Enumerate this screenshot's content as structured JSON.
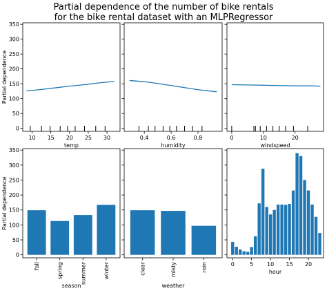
{
  "figure": {
    "title_line1": "Partial dependence of the number of bike rentals",
    "title_line2": "for the bike rental dataset with an MLPRegressor",
    "colors": {
      "series": "#1f77b4",
      "axes": "#000000"
    }
  },
  "chart_data": [
    {
      "type": "line",
      "xlabel": "temp",
      "ylabel": "Partial dependence",
      "xlim": [
        7.5,
        33.5
      ],
      "ylim": [
        -10,
        355
      ],
      "xticks": [
        10,
        15,
        20,
        25,
        30
      ],
      "yticks": [
        0,
        50,
        100,
        150,
        200,
        250,
        300,
        350
      ],
      "x": [
        8.5,
        12,
        16,
        20,
        24,
        28,
        32
      ],
      "y": [
        126,
        130,
        136,
        142,
        147,
        153,
        158
      ],
      "deciles": [
        9.5,
        12.5,
        14.8,
        17.5,
        19.5,
        21.5,
        24,
        27,
        29.5
      ]
    },
    {
      "type": "line",
      "xlabel": "humidity",
      "ylabel": "",
      "xlim": [
        0.25,
        0.98
      ],
      "ylim": [
        -10,
        355
      ],
      "xticks": [
        0.4,
        0.6,
        0.8
      ],
      "yticks": [
        0,
        50,
        100,
        150,
        200,
        250,
        300,
        350
      ],
      "x": [
        0.29,
        0.4,
        0.5,
        0.6,
        0.7,
        0.8,
        0.94
      ],
      "y": [
        161,
        157,
        151,
        144,
        137,
        130,
        123
      ],
      "deciles": [
        0.36,
        0.43,
        0.48,
        0.54,
        0.59,
        0.64,
        0.7,
        0.76,
        0.83
      ]
    },
    {
      "type": "line",
      "xlabel": "windspeed",
      "ylabel": "",
      "xlim": [
        -1.5,
        29
      ],
      "ylim": [
        -10,
        355
      ],
      "xticks": [
        0,
        10,
        20
      ],
      "yticks": [
        0,
        50,
        100,
        150,
        200,
        250,
        300,
        350
      ],
      "x": [
        0,
        5,
        10,
        15,
        20,
        25,
        28
      ],
      "y": [
        147,
        146,
        145,
        144,
        143,
        143,
        142
      ],
      "deciles": [
        0,
        7,
        7.5,
        9,
        11,
        13,
        15,
        17,
        19.5,
        24
      ]
    },
    {
      "type": "bar",
      "xlabel": "season",
      "ylabel": "Partial dependence",
      "ylim": [
        -10,
        355
      ],
      "yticks": [
        0,
        50,
        100,
        150,
        200,
        250,
        300,
        350
      ],
      "categories": [
        "fall",
        "spring",
        "summer",
        "winter"
      ],
      "values": [
        149,
        113,
        133,
        167
      ]
    },
    {
      "type": "bar",
      "xlabel": "weather",
      "ylabel": "",
      "ylim": [
        -10,
        355
      ],
      "yticks": [
        0,
        50,
        100,
        150,
        200,
        250,
        300,
        350
      ],
      "categories": [
        "clear",
        "misty",
        "rain"
      ],
      "values": [
        149,
        147,
        97
      ]
    },
    {
      "type": "bar",
      "xlabel": "hour",
      "ylabel": "",
      "ylim": [
        -10,
        355
      ],
      "xlim": [
        -1.5,
        24
      ],
      "xticks": [
        0,
        5,
        10,
        15,
        20
      ],
      "yticks": [
        0,
        50,
        100,
        150,
        200,
        250,
        300,
        350
      ],
      "categories": [
        0,
        1,
        2,
        3,
        4,
        5,
        6,
        7,
        8,
        9,
        10,
        11,
        12,
        13,
        14,
        15,
        16,
        17,
        18,
        19,
        20,
        21,
        22,
        23
      ],
      "values": [
        43,
        27,
        18,
        12,
        10,
        26,
        62,
        172,
        288,
        160,
        135,
        150,
        168,
        168,
        167,
        170,
        215,
        340,
        330,
        250,
        215,
        168,
        127,
        73
      ]
    }
  ]
}
